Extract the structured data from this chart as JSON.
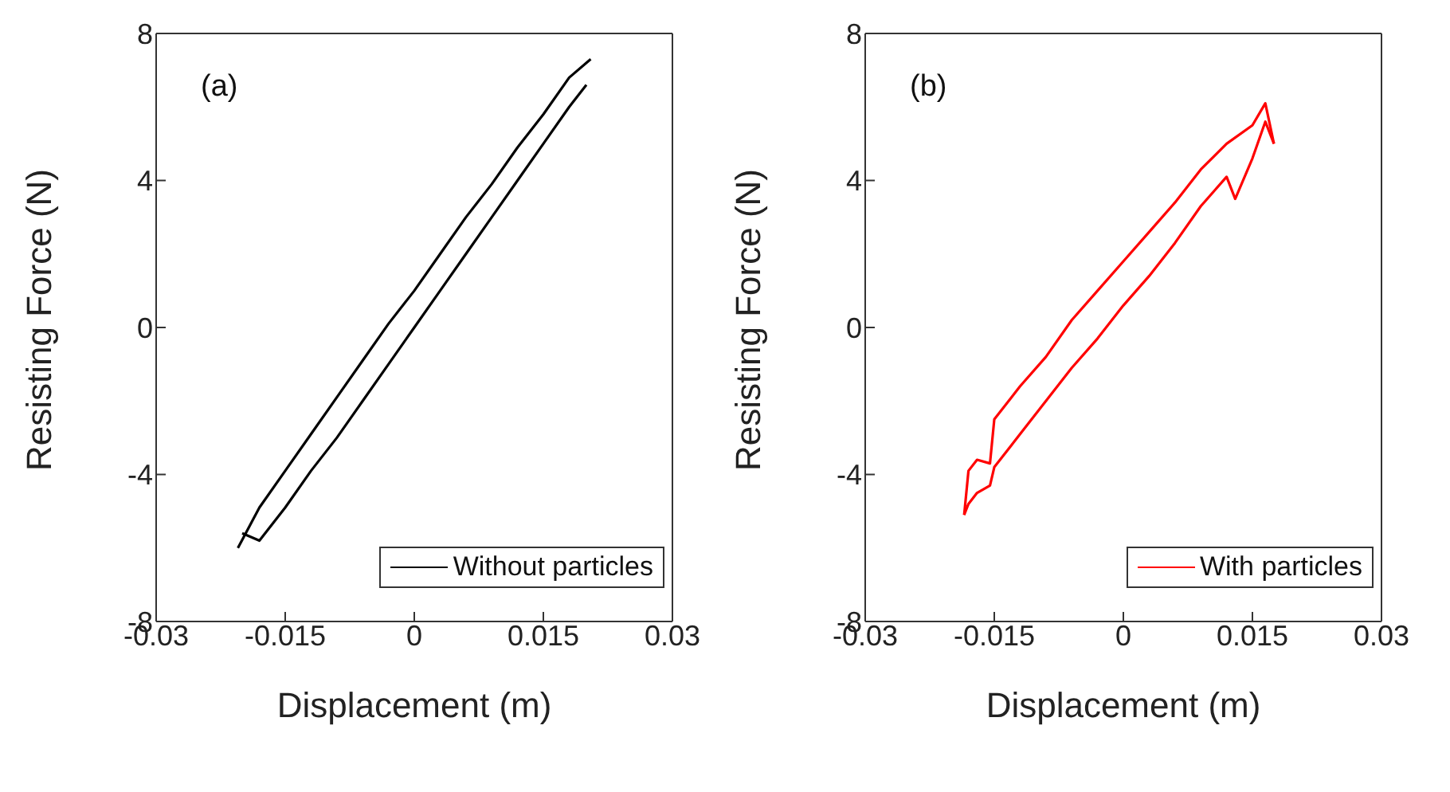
{
  "chart_data": [
    {
      "type": "line",
      "annotations": [
        "(a)"
      ],
      "xlabel": "Displacement (m)",
      "ylabel": "Resisting Force (N)",
      "xlim": [
        -0.03,
        0.03
      ],
      "xticks": [
        -0.03,
        -0.015,
        0,
        0.015,
        0.03
      ],
      "ylim": [
        -8,
        8
      ],
      "yticks": [
        -8,
        -4,
        0,
        4,
        8
      ],
      "legend": "bottom right",
      "grid": false,
      "series": [
        {
          "name": "Without particles",
          "color": "#000000",
          "x": [
            -0.0205,
            -0.018,
            -0.015,
            -0.012,
            -0.009,
            -0.006,
            -0.003,
            0,
            0.003,
            0.006,
            0.009,
            0.012,
            0.015,
            0.018,
            0.0205
          ],
          "values": [
            -6.0,
            -4.9,
            -3.9,
            -2.9,
            -1.9,
            -0.9,
            0.1,
            1.0,
            2.0,
            3.0,
            3.9,
            4.9,
            5.8,
            6.8,
            7.3
          ]
        },
        {
          "color": "#000000",
          "x": [
            -0.02,
            -0.018,
            -0.015,
            -0.012,
            -0.009,
            -0.006,
            -0.003,
            0,
            0.003,
            0.006,
            0.009,
            0.012,
            0.015,
            0.018,
            0.02
          ],
          "values": [
            -5.6,
            -5.8,
            -4.9,
            -3.9,
            -3.0,
            -2.0,
            -1.0,
            0.0,
            1.0,
            2.0,
            3.0,
            4.0,
            5.0,
            6.0,
            6.6
          ]
        }
      ]
    },
    {
      "type": "line",
      "annotations": [
        "(b)"
      ],
      "xlabel": "Displacement (m)",
      "ylabel": "Resisting Force (N)",
      "xlim": [
        -0.03,
        0.03
      ],
      "xticks": [
        -0.03,
        -0.015,
        0,
        0.015,
        0.03
      ],
      "ylim": [
        -8,
        8
      ],
      "yticks": [
        -8,
        -4,
        0,
        4,
        8
      ],
      "legend": "bottom right",
      "grid": false,
      "series": [
        {
          "name": "With particles",
          "color": "#ff0000",
          "x": [
            -0.0185,
            -0.018,
            -0.017,
            -0.0155,
            -0.015,
            -0.012,
            -0.009,
            -0.006,
            -0.003,
            0,
            0.003,
            0.006,
            0.009,
            0.012,
            0.015,
            0.0165,
            0.0175
          ],
          "values": [
            -5.1,
            -3.9,
            -3.6,
            -3.7,
            -2.5,
            -1.6,
            -0.8,
            0.2,
            1.0,
            1.8,
            2.6,
            3.4,
            4.3,
            5.0,
            5.5,
            6.1,
            5.0
          ]
        },
        {
          "color": "#ff0000",
          "x": [
            -0.0185,
            -0.018,
            -0.017,
            -0.0155,
            -0.015,
            -0.012,
            -0.009,
            -0.006,
            -0.003,
            0,
            0.003,
            0.006,
            0.009,
            0.012,
            0.013,
            0.015,
            0.0165,
            0.0175
          ],
          "values": [
            -5.1,
            -4.8,
            -4.5,
            -4.3,
            -3.8,
            -2.9,
            -2.0,
            -1.1,
            -0.3,
            0.6,
            1.4,
            2.3,
            3.3,
            4.1,
            3.5,
            4.6,
            5.6,
            5.0
          ]
        }
      ]
    }
  ]
}
